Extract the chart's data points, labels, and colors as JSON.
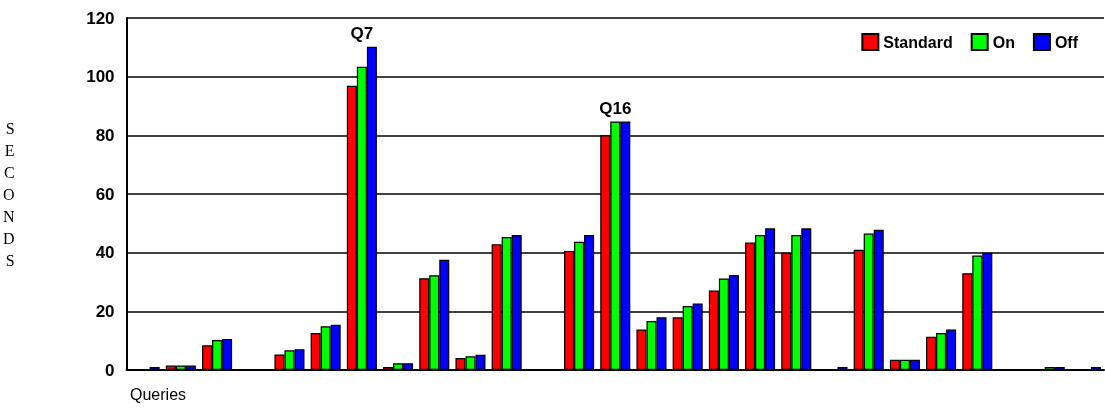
{
  "chart_data": {
    "type": "bar",
    "xlabel": "Queries",
    "ylabel": "SECONDS",
    "categories": [
      null,
      null,
      null,
      null,
      null,
      null,
      null,
      null,
      null,
      null,
      null,
      null,
      null,
      null,
      null,
      null,
      null,
      null,
      null,
      null,
      null,
      null,
      null,
      null,
      null,
      null,
      null
    ],
    "series": [
      {
        "name": "Standard",
        "color": "#ff0000",
        "values": [
          0,
          1.5,
          8.4,
          0,
          5.3,
          12.6,
          96.9,
          1,
          31.3,
          4.1,
          42.9,
          0,
          40.6,
          80,
          13.8,
          18,
          27.1,
          43.5,
          40,
          0,
          41,
          3.5,
          11.3,
          33,
          0,
          0,
          0
        ]
      },
      {
        "name": "On",
        "color": "#00ff00",
        "values": [
          0,
          1.5,
          10.2,
          0,
          6.7,
          14.9,
          103.4,
          2.3,
          32.3,
          4.7,
          45.3,
          0,
          43.7,
          84.7,
          16.7,
          21.8,
          31.2,
          46,
          46,
          0,
          46.5,
          3.5,
          12.6,
          39,
          0,
          1,
          0
        ]
      },
      {
        "name": "Off",
        "color": "#0000ff",
        "values": [
          1,
          1.5,
          10.6,
          0,
          7.1,
          15.4,
          110.2,
          2.3,
          37.6,
          5.2,
          46,
          0,
          46,
          84.7,
          18,
          22.7,
          32.4,
          48.3,
          48.3,
          1,
          47.8,
          3.5,
          13.8,
          40,
          0,
          1,
          1
        ]
      }
    ],
    "annotations": [
      "Q7",
      "Q16"
    ],
    "ylim": [
      0,
      120
    ],
    "yticks": [
      0,
      20,
      40,
      60,
      80,
      100,
      120
    ],
    "grid": "y",
    "legend": "top right"
  }
}
